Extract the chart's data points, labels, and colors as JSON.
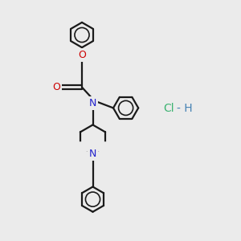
{
  "bg_color": "#ebebeb",
  "bond_color": "#1a1a1a",
  "n_color": "#2222cc",
  "o_color": "#cc0000",
  "hcl_color_cl": "#3cb371",
  "hcl_color_h": "#4682b4",
  "lw": 1.6,
  "r_benz": 0.52,
  "r_pip": 0.6,
  "figsize": [
    3.0,
    3.0
  ],
  "dpi": 100,
  "xlim": [
    0,
    10
  ],
  "ylim": [
    0,
    10
  ]
}
